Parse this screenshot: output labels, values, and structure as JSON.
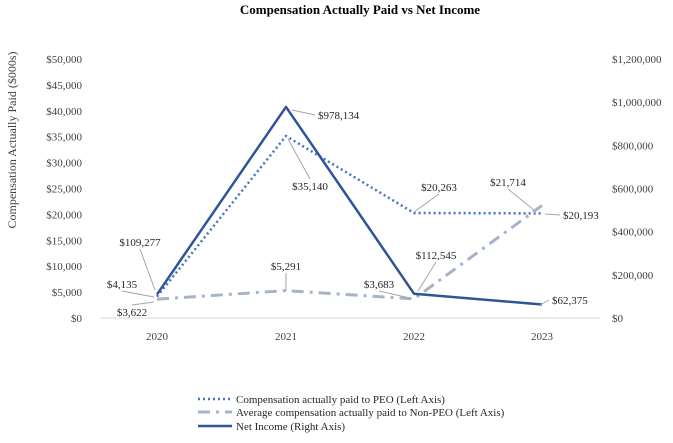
{
  "chart_data": {
    "type": "line",
    "title": "Compensation Actually Paid vs Net Income",
    "ylabel": "Compensation Actually Paid ($000s)",
    "xlabel": "",
    "categories": [
      "2020",
      "2021",
      "2022",
      "2023"
    ],
    "left_axis": {
      "ylim": [
        0,
        50000
      ],
      "ticks": [
        "$0",
        "$5,000",
        "$10,000",
        "$15,000",
        "$20,000",
        "$25,000",
        "$30,000",
        "$35,000",
        "$40,000",
        "$45,000",
        "$50,000"
      ]
    },
    "right_axis": {
      "ylim": [
        0,
        1200000
      ],
      "ticks": [
        "$0",
        "$200,000",
        "$400,000",
        "$600,000",
        "$800,000",
        "$1,000,000",
        "$1,200,000"
      ]
    },
    "series": [
      {
        "name": "Compensation actually paid to PEO (Left Axis)",
        "axis": "left",
        "style": "dotted",
        "color": "#4472c4",
        "values": [
          4135,
          35140,
          20263,
          20193
        ],
        "labels": [
          "$4,135",
          "$35,140",
          "$20,263",
          "$20,193"
        ]
      },
      {
        "name": "Average compensation actually paid to Non-PEO (Left Axis)",
        "axis": "left",
        "style": "dashdot",
        "color": "#a5b4c8",
        "values": [
          3622,
          5291,
          3683,
          21714
        ],
        "labels": [
          "$3,622",
          "$5,291",
          "$3,683",
          "$21,714"
        ]
      },
      {
        "name": "Net Income (Right Axis)",
        "axis": "right",
        "style": "solid",
        "color": "#2f5597",
        "values": [
          109277,
          978134,
          112545,
          62375
        ],
        "labels": [
          "$109,277",
          "$978,134",
          "$112,545",
          "$62,375"
        ]
      }
    ],
    "legend_position": "bottom",
    "grid": false
  }
}
